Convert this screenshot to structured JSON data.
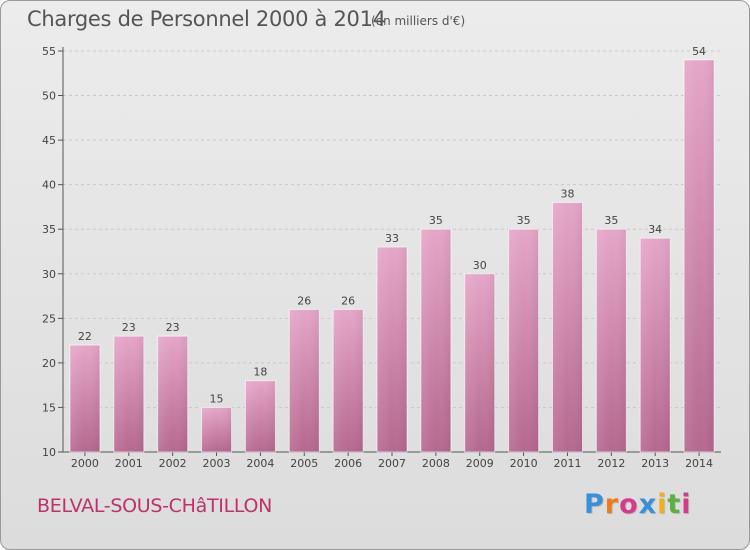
{
  "header": {
    "title": "Charges de Personnel 2000 à 2014",
    "subtitle": "(en milliers d'€)"
  },
  "footer": {
    "place_name": "BELVAL-SOUS-CHâTILLON",
    "logo_letters": [
      "P",
      "r",
      "o",
      "x",
      "i",
      "t",
      "i"
    ],
    "logo_colors": [
      "#3a8fd8",
      "#f07a1a",
      "#d63a8a",
      "#3a8fd8",
      "#f0b01a",
      "#5ab040",
      "#d63a8a"
    ]
  },
  "chart_data": {
    "type": "bar",
    "title": "Charges de Personnel 2000 à 2014",
    "subtitle": "(en milliers d'€)",
    "categories": [
      "2000",
      "2001",
      "2002",
      "2003",
      "2004",
      "2005",
      "2006",
      "2007",
      "2008",
      "2009",
      "2010",
      "2011",
      "2012",
      "2013",
      "2014"
    ],
    "values": [
      22,
      23,
      23,
      15,
      18,
      26,
      26,
      33,
      35,
      30,
      35,
      38,
      35,
      34,
      54
    ],
    "ylim": [
      10,
      55
    ],
    "yticks": [
      10,
      15,
      20,
      25,
      30,
      35,
      40,
      45,
      50,
      55
    ],
    "grid": true,
    "bar_color": "#d98fb5",
    "data_labels": true
  }
}
